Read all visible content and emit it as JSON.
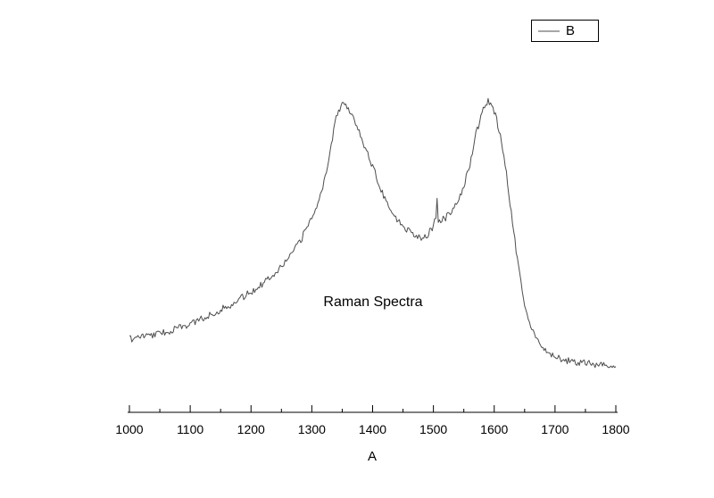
{
  "chart_data": {
    "type": "line",
    "title": "",
    "xlabel": "A",
    "ylabel": "",
    "annotation": "Raman Spectra",
    "legend": {
      "position": "top-right",
      "entries": [
        {
          "label": "B"
        }
      ]
    },
    "xlim": [
      1000,
      1800
    ],
    "ylim": [
      0,
      1.1
    ],
    "x_ticks": [
      1000,
      1100,
      1200,
      1300,
      1400,
      1500,
      1600,
      1700,
      1800
    ],
    "x_minor_ticks": [
      1050,
      1150,
      1250,
      1350,
      1450,
      1550,
      1650,
      1750
    ],
    "grid": false,
    "line_color": "#4d4d4d",
    "axis_color": "#000000",
    "series": [
      {
        "name": "B",
        "noise_amplitude": 0.011,
        "noise_seed": 7,
        "x": [
          1000,
          1020,
          1040,
          1060,
          1080,
          1100,
          1120,
          1140,
          1160,
          1180,
          1200,
          1220,
          1240,
          1260,
          1280,
          1300,
          1310,
          1320,
          1330,
          1340,
          1350,
          1360,
          1370,
          1380,
          1390,
          1400,
          1410,
          1420,
          1430,
          1440,
          1450,
          1460,
          1470,
          1480,
          1490,
          1500,
          1504,
          1506,
          1508,
          1510,
          1520,
          1530,
          1540,
          1550,
          1560,
          1570,
          1580,
          1590,
          1600,
          1610,
          1620,
          1630,
          1640,
          1650,
          1660,
          1670,
          1680,
          1690,
          1700,
          1720,
          1740,
          1760,
          1780,
          1800
        ],
        "y": [
          0.234,
          0.243,
          0.249,
          0.257,
          0.269,
          0.283,
          0.3,
          0.32,
          0.337,
          0.36,
          0.386,
          0.414,
          0.449,
          0.489,
          0.543,
          0.626,
          0.669,
          0.734,
          0.834,
          0.949,
          0.991,
          0.977,
          0.94,
          0.886,
          0.834,
          0.789,
          0.734,
          0.686,
          0.649,
          0.617,
          0.597,
          0.58,
          0.569,
          0.56,
          0.569,
          0.591,
          0.63,
          0.68,
          0.61,
          0.611,
          0.623,
          0.643,
          0.671,
          0.723,
          0.794,
          0.891,
          0.96,
          0.997,
          0.963,
          0.891,
          0.763,
          0.606,
          0.463,
          0.349,
          0.277,
          0.234,
          0.206,
          0.189,
          0.177,
          0.166,
          0.16,
          0.154,
          0.151,
          0.149
        ]
      }
    ]
  }
}
